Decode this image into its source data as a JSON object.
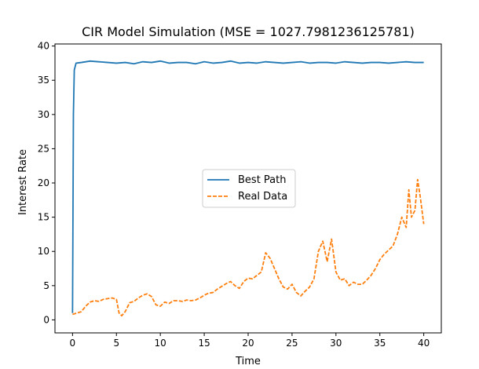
{
  "chart_data": {
    "type": "line",
    "title": "CIR Model Simulation (MSE = 1027.7981236125781)",
    "xlabel": "Time",
    "ylabel": "Interest Rate",
    "xlim": [
      -2.0,
      42.0
    ],
    "ylim": [
      -1.9,
      40.3
    ],
    "xticks": [
      0,
      5,
      10,
      15,
      20,
      25,
      30,
      35,
      40
    ],
    "yticks": [
      0,
      5,
      10,
      15,
      20,
      25,
      30,
      35,
      40
    ],
    "grid": false,
    "legend_position": "center-right",
    "series": [
      {
        "name": "Best Path",
        "color": "#1f77b4",
        "style": "solid",
        "x": [
          0,
          0.05,
          0.1,
          0.2,
          0.4,
          1,
          2,
          3,
          4,
          5,
          6,
          7,
          8,
          9,
          10,
          11,
          12,
          13,
          14,
          15,
          16,
          17,
          18,
          19,
          20,
          21,
          22,
          23,
          24,
          25,
          26,
          27,
          28,
          29,
          30,
          31,
          32,
          33,
          34,
          35,
          36,
          37,
          38,
          39,
          40
        ],
        "y": [
          1.0,
          15.0,
          30.0,
          36.5,
          37.5,
          37.6,
          37.8,
          37.7,
          37.6,
          37.5,
          37.6,
          37.4,
          37.7,
          37.6,
          37.8,
          37.5,
          37.6,
          37.6,
          37.4,
          37.7,
          37.5,
          37.6,
          37.8,
          37.5,
          37.6,
          37.5,
          37.7,
          37.6,
          37.5,
          37.6,
          37.7,
          37.5,
          37.6,
          37.6,
          37.5,
          37.7,
          37.6,
          37.5,
          37.6,
          37.6,
          37.5,
          37.6,
          37.7,
          37.6,
          37.6
        ]
      },
      {
        "name": "Real Data",
        "color": "#ff7f0e",
        "style": "dashed",
        "x": [
          0,
          0.5,
          1,
          1.5,
          2,
          2.5,
          3,
          3.5,
          4,
          4.5,
          5,
          5.3,
          5.6,
          6,
          6.5,
          7,
          7.5,
          8,
          8.5,
          9,
          9.5,
          10,
          10.5,
          11,
          11.5,
          12,
          12.5,
          13,
          13.5,
          14,
          14.5,
          15,
          15.5,
          16,
          16.5,
          17,
          17.5,
          18,
          18.5,
          19,
          19.5,
          20,
          20.5,
          21,
          21.5,
          22,
          22.5,
          23,
          23.5,
          24,
          24.5,
          25,
          25.5,
          26,
          26.5,
          27,
          27.5,
          28,
          28.5,
          29,
          29.5,
          30,
          30.5,
          31,
          31.5,
          32,
          32.5,
          33,
          33.5,
          34,
          34.5,
          35,
          35.5,
          36,
          36.5,
          37,
          37.5,
          38,
          38.3,
          38.6,
          39,
          39.3,
          39.6,
          40
        ],
        "y": [
          0.8,
          1.0,
          1.2,
          2.0,
          2.6,
          2.8,
          2.7,
          3.0,
          3.1,
          3.2,
          3.0,
          1.0,
          0.6,
          1.2,
          2.5,
          2.7,
          3.2,
          3.6,
          3.8,
          3.4,
          2.2,
          2.0,
          2.6,
          2.4,
          2.8,
          2.8,
          2.7,
          2.9,
          2.8,
          2.9,
          3.2,
          3.6,
          3.9,
          4.0,
          4.5,
          4.9,
          5.3,
          5.6,
          5.0,
          4.6,
          5.6,
          6.1,
          6.0,
          6.5,
          7.0,
          9.8,
          9.0,
          7.5,
          6.0,
          4.8,
          4.5,
          5.2,
          4.0,
          3.5,
          4.2,
          4.8,
          6.0,
          10.0,
          11.5,
          8.5,
          11.8,
          7.0,
          5.8,
          6.0,
          5.0,
          5.5,
          5.2,
          5.2,
          5.8,
          6.5,
          7.5,
          8.8,
          9.6,
          10.2,
          10.8,
          12.5,
          15.0,
          13.5,
          19.0,
          15.0,
          16.0,
          20.5,
          18.0,
          14.0
        ]
      }
    ]
  }
}
